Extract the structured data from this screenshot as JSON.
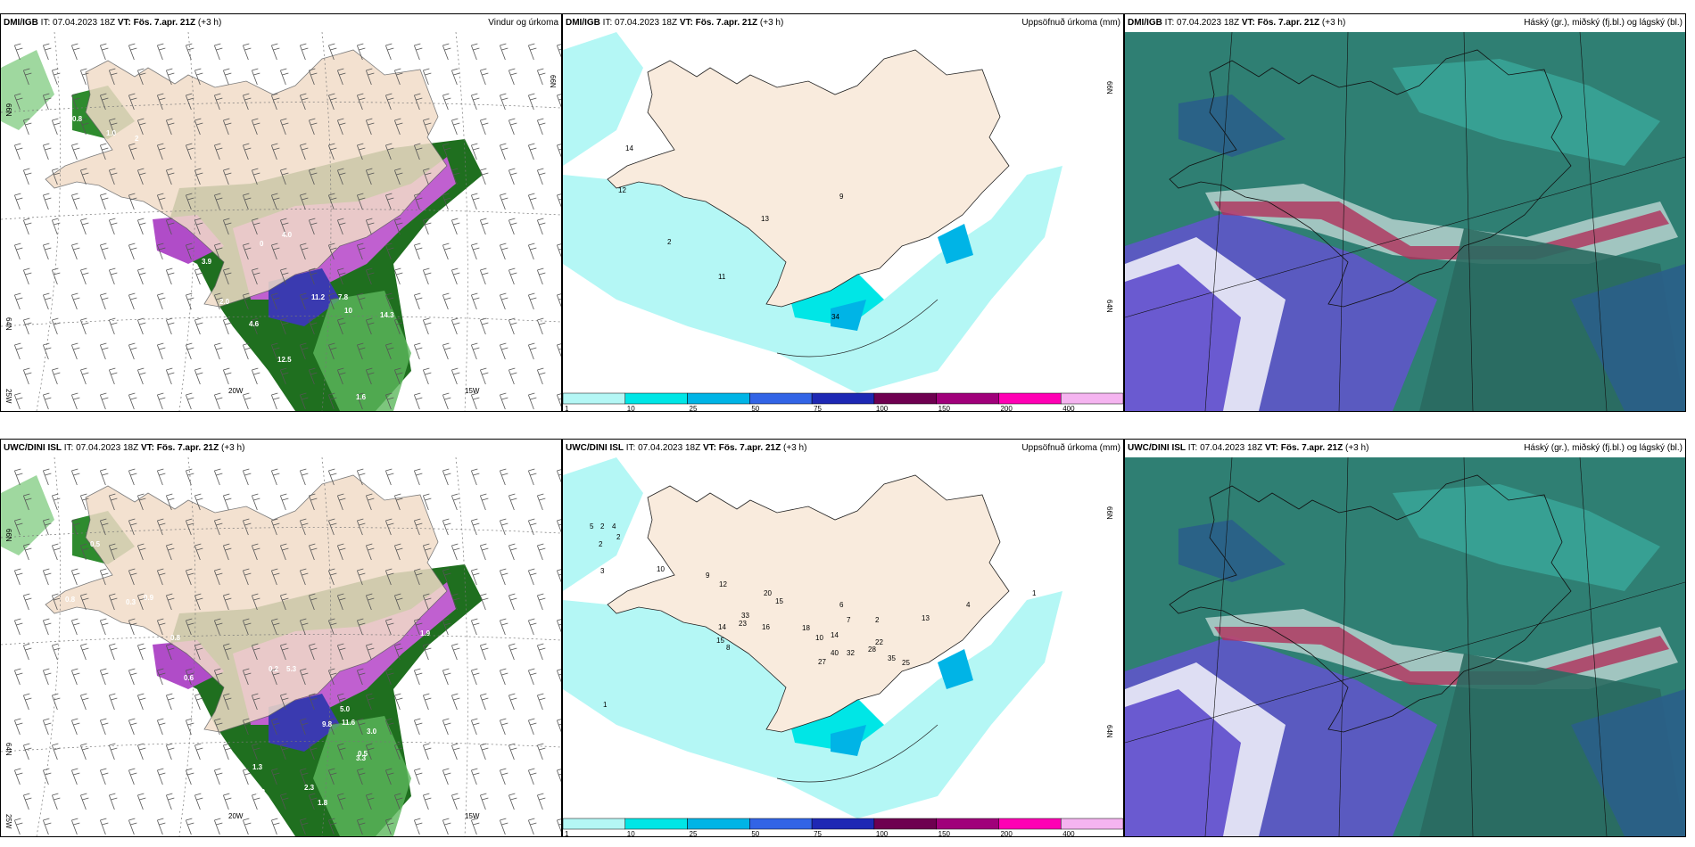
{
  "panels": [
    {
      "model": "DMI/IGB",
      "it": "IT: 07.04.2023 18Z",
      "vt_label": "VT:",
      "vt": "Fös. 7.apr. 21Z",
      "lead": "(+3 h)",
      "title": "Vindur og úrkoma",
      "type": "wind",
      "values": [
        {
          "v": "0.8"
        },
        {
          "v": "1.0"
        },
        {
          "v": "2"
        },
        {
          "v": "0.2"
        },
        {
          "v": "2.7"
        },
        {
          "v": "3.9"
        },
        {
          "v": "4.0"
        },
        {
          "v": "0"
        },
        {
          "v": "2.0"
        },
        {
          "v": "4.6"
        },
        {
          "v": "11.2"
        },
        {
          "v": "7.8"
        },
        {
          "v": "10"
        },
        {
          "v": "14.3"
        },
        {
          "v": "12.5"
        },
        {
          "v": "1.6"
        }
      ],
      "lon_labels": [
        "20W",
        "15W"
      ],
      "lat_labels": [
        "66N",
        "64N",
        "25W"
      ],
      "lat_right": "66N"
    },
    {
      "model": "DMI/IGB",
      "it": "IT: 07.04.2023 18Z",
      "vt_label": "VT:",
      "vt": "Fös. 7.apr. 21Z",
      "lead": "(+3 h)",
      "title": "Uppsöfnuð úrkoma (mm)",
      "type": "precip",
      "values": [
        {
          "v": "14"
        },
        {
          "v": "12"
        },
        {
          "v": "2"
        },
        {
          "v": "13"
        },
        {
          "v": "11"
        },
        {
          "v": "9"
        },
        {
          "v": "34"
        }
      ],
      "lat_right": "66N",
      "lat_right2": "64N"
    },
    {
      "model": "DMI/IGB",
      "it": "IT: 07.04.2023 18Z",
      "vt_label": "VT:",
      "vt": "Fös. 7.apr. 21Z",
      "lead": "(+3 h)",
      "title": "Háský (gr.), miðský (fj.bl.) og lágský (bl.)",
      "type": "cloud"
    },
    {
      "model": "UWC/DINI ISL",
      "it": "IT: 07.04.2023 18Z",
      "vt_label": "VT:",
      "vt": "Fös. 7.apr. 21Z",
      "lead": "(+3 h)",
      "title": "",
      "type": "wind",
      "values": [
        {
          "v": "0.5"
        },
        {
          "v": "1.0"
        },
        {
          "v": "1.0"
        },
        {
          "v": "0.8"
        },
        {
          "v": "0.3"
        },
        {
          "v": "0.9"
        },
        {
          "v": "0.5"
        },
        {
          "v": "0.8"
        },
        {
          "v": "0.6"
        },
        {
          "v": "0.2"
        },
        {
          "v": "5.3"
        },
        {
          "v": "5.0"
        },
        {
          "v": "3.0"
        },
        {
          "v": "0.5"
        },
        {
          "v": "11.6"
        },
        {
          "v": "9.8"
        },
        {
          "v": "3.3"
        },
        {
          "v": "1.3"
        },
        {
          "v": "0.2"
        },
        {
          "v": "2.3"
        },
        {
          "v": "1.8"
        },
        {
          "v": "0.7"
        },
        {
          "v": "0.7"
        },
        {
          "v": "0.6"
        },
        {
          "v": "1.9"
        }
      ],
      "lon_labels": [
        "20W",
        "15W"
      ],
      "lat_labels": [
        "66N",
        "64N",
        "25W"
      ]
    },
    {
      "model": "UWC/DINI ISL",
      "it": "IT: 07.04.2023 18Z",
      "vt_label": "VT:",
      "vt": "Fös. 7.apr. 21Z",
      "lead": "(+3 h)",
      "title": "Uppsöfnuð úrkoma (mm)",
      "type": "precip",
      "values": [
        {
          "v": "2"
        },
        {
          "v": "5"
        },
        {
          "v": "4"
        },
        {
          "v": "2"
        },
        {
          "v": "3"
        },
        {
          "v": "10"
        },
        {
          "v": "9"
        },
        {
          "v": "12"
        },
        {
          "v": "20"
        },
        {
          "v": "15"
        },
        {
          "v": "33"
        },
        {
          "v": "23"
        },
        {
          "v": "14"
        },
        {
          "v": "15"
        },
        {
          "v": "16"
        },
        {
          "v": "8"
        },
        {
          "v": "18"
        },
        {
          "v": "14"
        },
        {
          "v": "10"
        },
        {
          "v": "40"
        },
        {
          "v": "27"
        },
        {
          "v": "32"
        },
        {
          "v": "28"
        },
        {
          "v": "22"
        },
        {
          "v": "35"
        },
        {
          "v": "25"
        },
        {
          "v": "13"
        },
        {
          "v": "4"
        },
        {
          "v": "1"
        },
        {
          "v": "6"
        },
        {
          "v": "7"
        },
        {
          "v": "2"
        },
        {
          "v": "1"
        },
        {
          "v": "2"
        }
      ],
      "lat_right": "66N",
      "lat_right2": "64N"
    },
    {
      "model": "UWC/DINI ISL",
      "it": "IT: 07.04.2023 18Z",
      "vt_label": "VT:",
      "vt": "Fös. 7.apr. 21Z",
      "lead": "(+3 h)",
      "title": "Háský (gr.), miðský (fj.bl.) og lágský (bl.)",
      "type": "cloud"
    }
  ],
  "colorbar": {
    "ticks": [
      "1",
      "10",
      "25",
      "50",
      "75",
      "100",
      "150",
      "200",
      "400"
    ],
    "colors": [
      "#b4f7f5",
      "#00e6e6",
      "#00b4e6",
      "#3264e6",
      "#1e28b4",
      "#6e0050",
      "#a0007a",
      "#ff00b4",
      "#f5b4f0"
    ]
  }
}
